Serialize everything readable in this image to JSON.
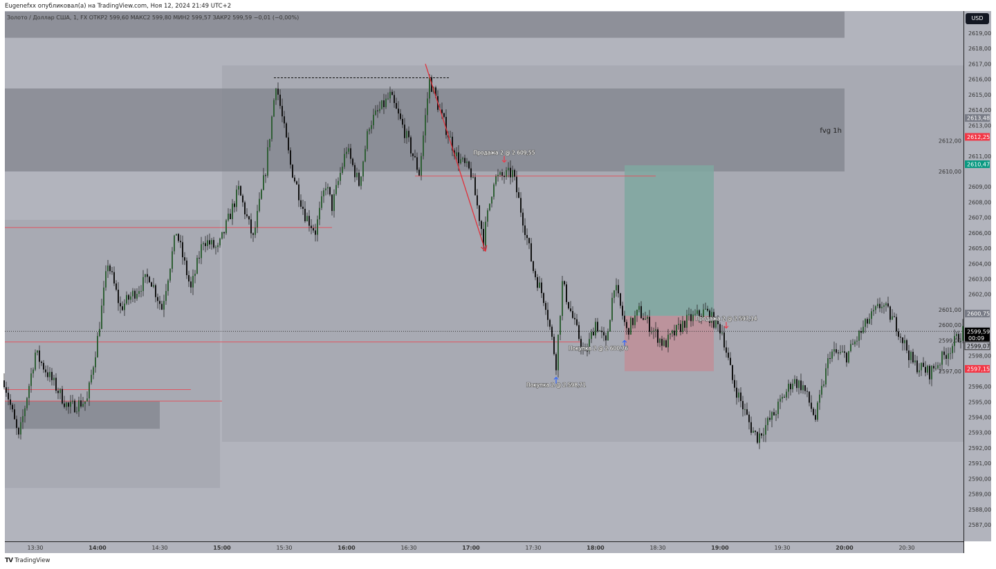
{
  "header": {
    "published": "Eugenefxx опубликовал(а) на TradingView.com, Ноя 12, 2024 21:49 UTC+2",
    "legend": "Золото / Доллар США, 1, FX  ОТКР2 599,60  МАКС2 599,80  МИН2 599,57  ЗАКР2 599,59  −0,01 (−0,00%)",
    "currency": "USD"
  },
  "footer": {
    "brand": "TradingView"
  },
  "colors": {
    "bull": "#2f5f35",
    "bear": "#111111",
    "line_red": "#e05560",
    "profit": "#7fa8a0",
    "loss": "#c08f98",
    "label_red": "#f23645",
    "label_green": "#089981",
    "label_gray": "#787b86"
  },
  "chart_data": {
    "type": "candlestick",
    "symbol": "Золото / Доллар США",
    "interval": "1",
    "ylim": [
      2586.5,
      2620
    ],
    "xlim": [
      "13:15",
      "20:58"
    ],
    "y_ticks": [
      "2587,00",
      "2588,00",
      "2589,00",
      "2590,00",
      "2591,00",
      "2592,00",
      "2593,00",
      "2594,00",
      "2595,00",
      "2596,00",
      "2597,00",
      "2598,00",
      "2599,00",
      "2600,00",
      "2601,00",
      "2602,00",
      "2603,00",
      "2604,00",
      "2605,00",
      "2606,00",
      "2607,00",
      "2608,00",
      "2609,00",
      "2610,00",
      "2611,00",
      "2612,00",
      "2613,00",
      "2614,00",
      "2615,00",
      "2616,00",
      "2617,00",
      "2618,00",
      "2619,00"
    ],
    "x_ticks": [
      {
        "label": "13:30",
        "bold": false
      },
      {
        "label": "14:00",
        "bold": true
      },
      {
        "label": "14:30",
        "bold": false
      },
      {
        "label": "15:00",
        "bold": true
      },
      {
        "label": "15:30",
        "bold": false
      },
      {
        "label": "16:00",
        "bold": true
      },
      {
        "label": "16:30",
        "bold": false
      },
      {
        "label": "17:00",
        "bold": true
      },
      {
        "label": "17:30",
        "bold": false
      },
      {
        "label": "18:00",
        "bold": true
      },
      {
        "label": "18:30",
        "bold": false
      },
      {
        "label": "19:00",
        "bold": true
      },
      {
        "label": "19:30",
        "bold": false
      },
      {
        "label": "20:00",
        "bold": true
      },
      {
        "label": "20:30",
        "bold": false
      }
    ],
    "price_path": [
      [
        "13:15",
        2596.4
      ],
      [
        "13:22",
        2592.6
      ],
      [
        "13:30",
        2598.2
      ],
      [
        "13:46",
        2594.6
      ],
      [
        "13:55",
        2595.1
      ],
      [
        "14:00",
        2599.1
      ],
      [
        "14:05",
        2604.1
      ],
      [
        "14:11",
        2601.1
      ],
      [
        "14:25",
        2603.2
      ],
      [
        "14:31",
        2601.1
      ],
      [
        "14:38",
        2606.1
      ],
      [
        "14:45",
        2602.3
      ],
      [
        "14:51",
        2605.6
      ],
      [
        "14:58",
        2604.9
      ],
      [
        "15:08",
        2608.8
      ],
      [
        "15:15",
        2605.6
      ],
      [
        "15:21",
        2610.1
      ],
      [
        "15:26",
        2615.8
      ],
      [
        "15:33",
        2610.4
      ],
      [
        "15:40",
        2607.2
      ],
      [
        "15:45",
        2606.1
      ],
      [
        "15:50",
        2609.2
      ],
      [
        "15:53",
        2607.7
      ],
      [
        "16:00",
        2611.5
      ],
      [
        "16:06",
        2609.2
      ],
      [
        "16:11",
        2613.1
      ],
      [
        "16:21",
        2614.9
      ],
      [
        "16:28",
        2612.6
      ],
      [
        "16:35",
        2609.9
      ],
      [
        "16:40",
        2616.0
      ],
      [
        "16:46",
        2613.5
      ],
      [
        "16:53",
        2611.0
      ],
      [
        "17:00",
        2609.9
      ],
      [
        "17:06",
        2605.6
      ],
      [
        "17:11",
        2609.5
      ],
      [
        "17:20",
        2609.9
      ],
      [
        "17:26",
        2606.3
      ],
      [
        "17:30",
        2603.6
      ],
      [
        "17:36",
        2601.4
      ],
      [
        "17:41",
        2597.5
      ],
      [
        "17:44",
        2602.7
      ],
      [
        "17:50",
        2600.0
      ],
      [
        "17:55",
        2598.0
      ],
      [
        "18:00",
        2600.2
      ],
      [
        "18:05",
        2598.7
      ],
      [
        "18:09",
        2602.7
      ],
      [
        "18:15",
        2599.6
      ],
      [
        "18:21",
        2600.9
      ],
      [
        "18:33",
        2598.7
      ],
      [
        "18:43",
        2600.2
      ],
      [
        "18:53",
        2600.9
      ],
      [
        "19:01",
        2599.6
      ],
      [
        "19:06",
        2596.4
      ],
      [
        "19:15",
        2593.3
      ],
      [
        "19:18",
        2592.7
      ],
      [
        "19:26",
        2594.2
      ],
      [
        "19:35",
        2596.4
      ],
      [
        "19:40",
        2596.0
      ],
      [
        "19:46",
        2593.9
      ],
      [
        "19:53",
        2598.2
      ],
      [
        "20:01",
        2598.0
      ],
      [
        "20:11",
        2600.2
      ],
      [
        "20:18",
        2601.4
      ],
      [
        "20:25",
        2600.0
      ],
      [
        "20:33",
        2597.5
      ],
      [
        "20:41",
        2596.9
      ],
      [
        "20:48",
        2598.0
      ],
      [
        "20:57",
        2599.6
      ]
    ],
    "zones": [
      {
        "kind": "dark",
        "from": "13:15",
        "to": "20:00",
        "top": 2620.4,
        "bottom": 2618.7
      },
      {
        "kind": "medium",
        "from": "15:00",
        "to": "20:58",
        "top": 2616.9,
        "bottom": 2592.4
      },
      {
        "kind": "medium",
        "from": "13:15",
        "to": "14:59",
        "top": 2606.85,
        "bottom": 2589.4
      },
      {
        "kind": "dark",
        "from": "13:15",
        "to": "20:00",
        "top": 2615.4,
        "bottom": 2610.0,
        "label": "fvg 1h"
      },
      {
        "kind": "dark",
        "from": "13:15",
        "to": "14:30",
        "top": 2595.05,
        "bottom": 2593.25
      }
    ],
    "position": {
      "from": "18:14",
      "to": "18:57",
      "target": 2610.4,
      "entry": 2600.6,
      "stop": 2597.0
    },
    "levels": [
      {
        "price": 2606.35,
        "from": "13:15",
        "to": "15:53"
      },
      {
        "price": 2609.7,
        "from": "16:33",
        "to": "18:29"
      },
      {
        "price": 2598.9,
        "from": "13:15",
        "to": "17:53"
      },
      {
        "price": 2595.8,
        "from": "13:15",
        "to": "14:45"
      },
      {
        "price": 2595.05,
        "from": "13:15",
        "to": "15:00"
      }
    ],
    "high_line": {
      "price": 2616.1,
      "from": "15:25",
      "to": "16:50"
    },
    "arrow": {
      "from": [
        "16:38",
        2617.0
      ],
      "to": [
        "17:07",
        2604.8
      ]
    },
    "trades": [
      {
        "side": "sell",
        "time": "17:16",
        "price": 2610.6,
        "label": "Продажа 2 @ 2 609,55"
      },
      {
        "side": "buy",
        "time": "17:41",
        "price": 2596.6,
        "label": "Покупка 2 @ 2 598,71"
      },
      {
        "side": "buy",
        "time": "18:14",
        "price": 2599.0,
        "label": "Покупка 2 @ 2 600,76"
      },
      {
        "side": "sell",
        "time": "19:03",
        "price": 2599.8,
        "label": "Продажа 2 @ 2 597,14"
      }
    ],
    "current_price": 2599.59,
    "price_labels": [
      {
        "price": 2613.48,
        "text": "2613,48",
        "style": "gray"
      },
      {
        "price": 2612.25,
        "text": "2612,25",
        "style": "red"
      },
      {
        "price": 2610.47,
        "text": "2610,47",
        "style": "green"
      },
      {
        "price": 2600.75,
        "text": "2600,75",
        "style": "gray"
      },
      {
        "price": 2599.59,
        "text": "2599,59",
        "sub": "00:09",
        "style": "black"
      },
      {
        "price": 2599.07,
        "text": "2599,07",
        "style": "outline"
      },
      {
        "price": 2597.15,
        "text": "2597,15",
        "style": "red"
      }
    ]
  }
}
